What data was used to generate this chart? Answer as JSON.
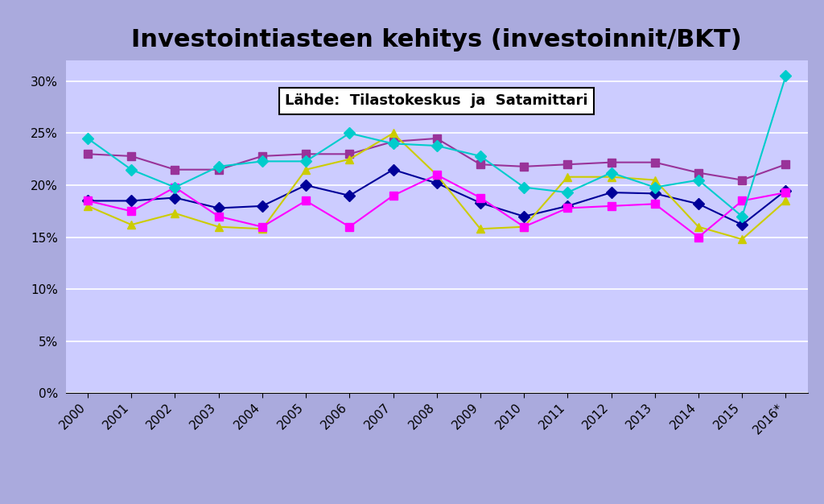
{
  "title": "Investointiasteen kehitys (investoinnit/BKT)",
  "source_text": "Lähde:  Tilastokeskus  ja  Satamittari",
  "years": [
    "2000",
    "2001",
    "2002",
    "2003",
    "2004",
    "2005",
    "2006",
    "2007",
    "2008",
    "2009",
    "2010",
    "2011",
    "2012",
    "2013",
    "2014",
    "2015",
    "2016*"
  ],
  "series": {
    "KOKO MAA": {
      "color": "#993399",
      "marker": "s",
      "values": [
        23.0,
        22.8,
        21.5,
        21.5,
        22.8,
        23.0,
        23.0,
        24.2,
        24.5,
        22.0,
        21.8,
        22.0,
        22.2,
        22.2,
        21.2,
        20.5,
        22.0
      ]
    },
    "Satakunta": {
      "color": "#000099",
      "marker": "D",
      "values": [
        18.5,
        18.5,
        18.8,
        17.8,
        18.0,
        20.0,
        19.0,
        21.5,
        20.2,
        18.3,
        17.0,
        18.0,
        19.3,
        19.2,
        18.2,
        16.2,
        19.5
      ]
    },
    "Rauma": {
      "color": "#cccc00",
      "marker": "^",
      "values": [
        18.0,
        16.2,
        17.3,
        16.0,
        15.8,
        21.5,
        22.5,
        25.0,
        21.0,
        15.8,
        16.0,
        20.8,
        20.8,
        20.5,
        16.0,
        14.8,
        18.5
      ]
    },
    "Pori": {
      "color": "#ff00ff",
      "marker": "s",
      "values": [
        18.5,
        17.5,
        19.8,
        17.0,
        16.0,
        18.5,
        16.0,
        19.0,
        21.0,
        18.8,
        16.0,
        17.8,
        18.0,
        18.2,
        15.0,
        18.5,
        19.3
      ]
    },
    "Pohjois-Satakunta": {
      "color": "#00cccc",
      "marker": "D",
      "values": [
        24.5,
        21.5,
        19.8,
        21.8,
        22.3,
        22.3,
        25.0,
        24.0,
        23.8,
        22.8,
        19.8,
        19.3,
        21.2,
        19.8,
        20.5,
        17.0,
        30.5
      ]
    }
  },
  "ylim": [
    0,
    32
  ],
  "yticks": [
    0,
    5,
    10,
    15,
    20,
    25,
    30
  ],
  "ytick_labels": [
    "0%",
    "5%",
    "10%",
    "15%",
    "20%",
    "25%",
    "30%"
  ],
  "fig_bg_color": "#aaaadd",
  "plot_bg_color": "#ccccff",
  "legend_bg_color": "#ffffff",
  "title_fontsize": 22,
  "annotation_fontsize": 13,
  "tick_fontsize": 11,
  "legend_fontsize": 11
}
